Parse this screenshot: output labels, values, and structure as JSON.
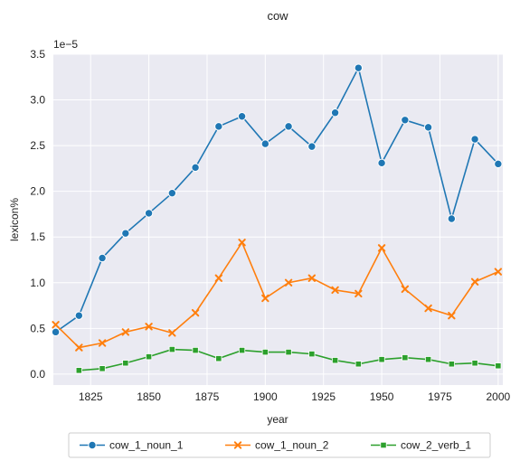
{
  "chart_data": {
    "type": "line",
    "title": "cow",
    "xlabel": "year",
    "ylabel": "lexicon%",
    "y_scale_note": "1e−5",
    "xlim": [
      1809,
      2002
    ],
    "ylim": [
      -0.12,
      3.5
    ],
    "x_ticks": [
      1825,
      1850,
      1875,
      1900,
      1925,
      1950,
      1975,
      2000
    ],
    "x_tick_labels": [
      "1825",
      "1850",
      "1875",
      "1900",
      "1925",
      "1950",
      "1975",
      "2000"
    ],
    "y_ticks": [
      0.0,
      0.5,
      1.0,
      1.5,
      2.0,
      2.5,
      3.0,
      3.5
    ],
    "y_tick_labels": [
      "0.0",
      "0.5",
      "1.0",
      "1.5",
      "2.0",
      "2.5",
      "3.0",
      "3.5"
    ],
    "grid": true,
    "legend_position": "bottom-center",
    "series": [
      {
        "name": "cow_1_noun_1",
        "color": "#1f77b4",
        "marker": "circle",
        "points": [
          [
            1810,
            0.46
          ],
          [
            1820,
            0.64
          ],
          [
            1830,
            1.27
          ],
          [
            1840,
            1.54
          ],
          [
            1850,
            1.76
          ],
          [
            1860,
            1.98
          ],
          [
            1870,
            2.26
          ],
          [
            1880,
            2.71
          ],
          [
            1890,
            2.82
          ],
          [
            1900,
            2.52
          ],
          [
            1910,
            2.71
          ],
          [
            1920,
            2.49
          ],
          [
            1930,
            2.86
          ],
          [
            1940,
            3.35
          ],
          [
            1950,
            2.31
          ],
          [
            1960,
            2.78
          ],
          [
            1970,
            2.7
          ],
          [
            1980,
            1.7
          ],
          [
            1990,
            2.57
          ],
          [
            2000,
            2.3
          ]
        ]
      },
      {
        "name": "cow_1_noun_2",
        "color": "#ff7f0e",
        "marker": "x",
        "points": [
          [
            1810,
            0.54
          ],
          [
            1820,
            0.29
          ],
          [
            1830,
            0.34
          ],
          [
            1840,
            0.46
          ],
          [
            1850,
            0.52
          ],
          [
            1860,
            0.45
          ],
          [
            1870,
            0.67
          ],
          [
            1880,
            1.05
          ],
          [
            1890,
            1.44
          ],
          [
            1900,
            0.83
          ],
          [
            1910,
            1.0
          ],
          [
            1920,
            1.05
          ],
          [
            1930,
            0.92
          ],
          [
            1940,
            0.88
          ],
          [
            1950,
            1.38
          ],
          [
            1960,
            0.93
          ],
          [
            1970,
            0.72
          ],
          [
            1980,
            0.64
          ],
          [
            1990,
            1.01
          ],
          [
            2000,
            1.12
          ]
        ]
      },
      {
        "name": "cow_2_verb_1",
        "color": "#2ca02c",
        "marker": "square",
        "points": [
          [
            1820,
            0.04
          ],
          [
            1830,
            0.06
          ],
          [
            1840,
            0.12
          ],
          [
            1850,
            0.19
          ],
          [
            1860,
            0.27
          ],
          [
            1870,
            0.26
          ],
          [
            1880,
            0.17
          ],
          [
            1890,
            0.26
          ],
          [
            1900,
            0.24
          ],
          [
            1910,
            0.24
          ],
          [
            1920,
            0.22
          ],
          [
            1930,
            0.15
          ],
          [
            1940,
            0.11
          ],
          [
            1950,
            0.16
          ],
          [
            1960,
            0.18
          ],
          [
            1970,
            0.16
          ],
          [
            1980,
            0.11
          ],
          [
            1990,
            0.12
          ],
          [
            2000,
            0.09
          ]
        ]
      }
    ]
  }
}
